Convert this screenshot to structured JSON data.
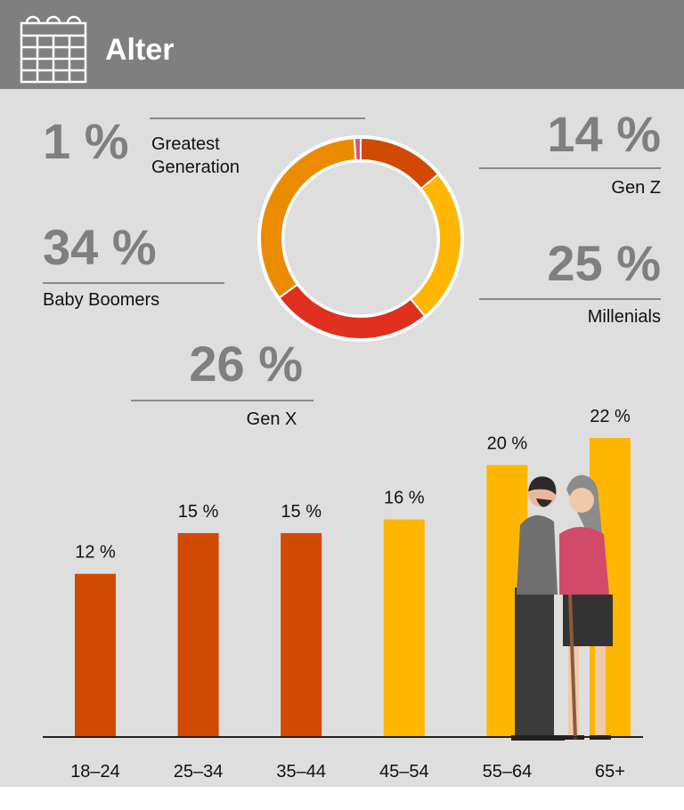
{
  "header": {
    "title": "Alter"
  },
  "chart_data": [
    {
      "type": "pie",
      "categories": [
        "Gen Z",
        "Millenials",
        "Gen X",
        "Baby Boomers",
        "Greatest Generation"
      ],
      "values": [
        14,
        25,
        26,
        34,
        1
      ],
      "value_labels": [
        "14 %",
        "25 %",
        "26 %",
        "34 %",
        "1 %"
      ],
      "colors": [
        "#d04a02",
        "#ffb600",
        "#e0301e",
        "#eb8c00",
        "#db536a"
      ]
    },
    {
      "type": "bar",
      "categories": [
        "18–24",
        "25–34",
        "35–44",
        "45–54",
        "55–64",
        "65+"
      ],
      "values": [
        12,
        15,
        15,
        16,
        20,
        22
      ],
      "value_labels": [
        "12 %",
        "15 %",
        "15 %",
        "16 %",
        "20 %",
        "22 %"
      ],
      "colors": [
        "#d04a02",
        "#d04a02",
        "#d04a02",
        "#ffb600",
        "#ffb600",
        "#ffb600"
      ]
    }
  ]
}
